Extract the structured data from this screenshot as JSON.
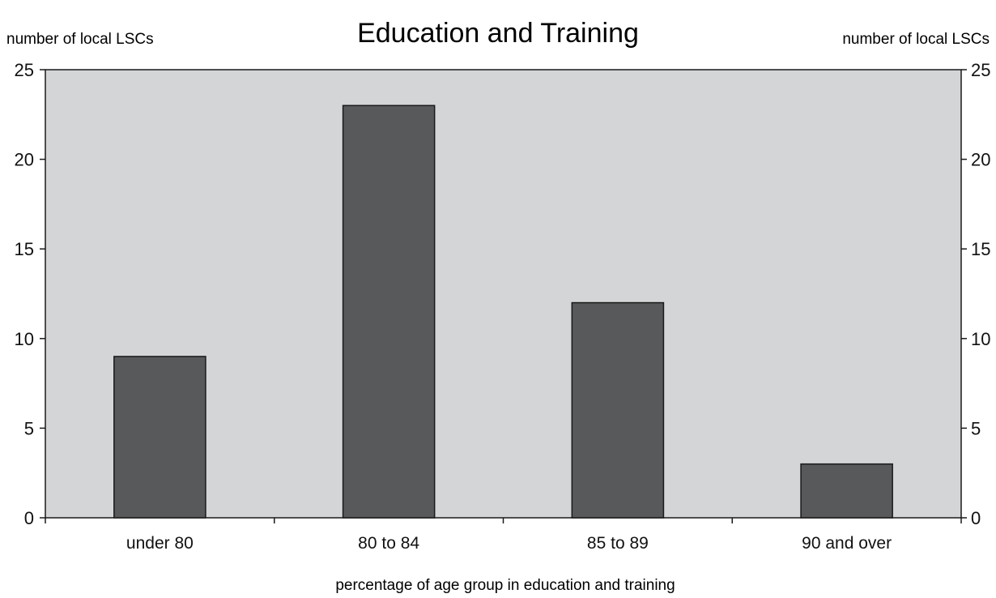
{
  "chart_data": {
    "type": "bar",
    "title": "Education and Training",
    "xlabel": "percentage of age group in education and training",
    "ylabel_left": "number of local LSCs",
    "ylabel_right": "number of local LSCs",
    "categories": [
      "under 80",
      "80 to 84",
      "85 to 89",
      "90 and over"
    ],
    "values": [
      9,
      23,
      12,
      3
    ],
    "ylim": [
      0,
      25
    ],
    "yticks": [
      0,
      5,
      10,
      15,
      20,
      25
    ],
    "grid": false,
    "legend": "none",
    "colors": {
      "plot_background": "#d4d5d7",
      "bar_fill": "#58595b",
      "bar_stroke": "#1a1a1a",
      "axis": "#1a1a1a",
      "text": "#111111"
    }
  }
}
